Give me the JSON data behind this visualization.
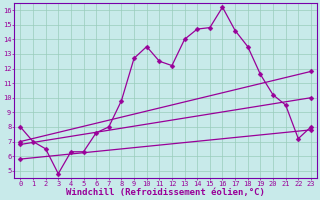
{
  "xlabel": "Windchill (Refroidissement éolien,°C)",
  "bg_color": "#c8eaea",
  "line_color": "#990099",
  "grid_color": "#99ccbb",
  "xlim": [
    -0.5,
    23.5
  ],
  "ylim": [
    4.5,
    16.5
  ],
  "xticks": [
    0,
    1,
    2,
    3,
    4,
    5,
    6,
    7,
    8,
    9,
    10,
    11,
    12,
    13,
    14,
    15,
    16,
    17,
    18,
    19,
    20,
    21,
    22,
    23
  ],
  "yticks": [
    5,
    6,
    7,
    8,
    9,
    10,
    11,
    12,
    13,
    14,
    15,
    16
  ],
  "series1_x": [
    0,
    1,
    2,
    3,
    4,
    5,
    6,
    7,
    8,
    9,
    10,
    11,
    12,
    13,
    14,
    15,
    16,
    17,
    18,
    19,
    20,
    21,
    22,
    23
  ],
  "series1_y": [
    8.0,
    7.0,
    6.5,
    4.8,
    6.3,
    6.3,
    7.6,
    8.0,
    9.8,
    12.7,
    13.5,
    12.5,
    12.2,
    14.0,
    14.7,
    14.8,
    16.2,
    14.6,
    13.5,
    11.6,
    10.2,
    9.5,
    7.2,
    8.0
  ],
  "series2_x": [
    0,
    23
  ],
  "series2_y": [
    7.0,
    11.8
  ],
  "series3_x": [
    0,
    23
  ],
  "series3_y": [
    6.8,
    10.0
  ],
  "series4_x": [
    0,
    23
  ],
  "series4_y": [
    5.8,
    7.8
  ],
  "markersize": 2.5,
  "linewidth": 0.9,
  "tick_fontsize": 5.0,
  "xlabel_fontsize": 6.5,
  "spine_color": "#7700aa"
}
